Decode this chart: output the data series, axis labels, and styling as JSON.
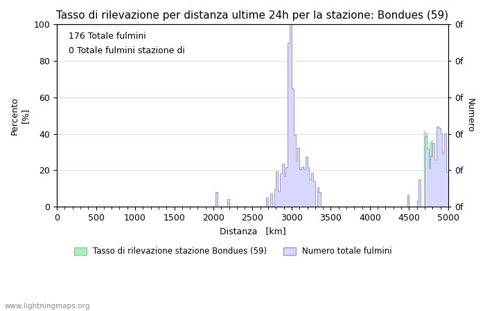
{
  "title": "Tasso di rilevazione per distanza ultime 24h per la stazione: Bondues (59)",
  "xlabel": "Distanza   [km]",
  "ylabel_left": "[%]",
  "ylabel_left_text": "Percento",
  "ylabel_right": "Numero",
  "annotation_line1": "176 Totale fulmini",
  "annotation_line2": "0 Totale fulmini stazione di",
  "legend1": "Tasso di rilevazione stazione Bondues (59)",
  "legend2": "Numero totale fulmini",
  "watermark": "www.lightningmaps.org",
  "xlim": [
    0,
    5000
  ],
  "ylim": [
    0,
    100
  ],
  "xticks": [
    0,
    500,
    1000,
    1500,
    2000,
    2500,
    3000,
    3500,
    4000,
    4500,
    5000
  ],
  "yticks_left": [
    0,
    20,
    40,
    60,
    80,
    100
  ],
  "bar_color": "#aaeebb",
  "bar_edge_color": "#88cc99",
  "fill_color": "#d8d8ff",
  "line_color": "#9999cc",
  "grid_color": "#cccccc",
  "background_color": "#ffffff",
  "title_fontsize": 11,
  "axis_fontsize": 9,
  "tick_fontsize": 9,
  "annot_fontsize": 9
}
